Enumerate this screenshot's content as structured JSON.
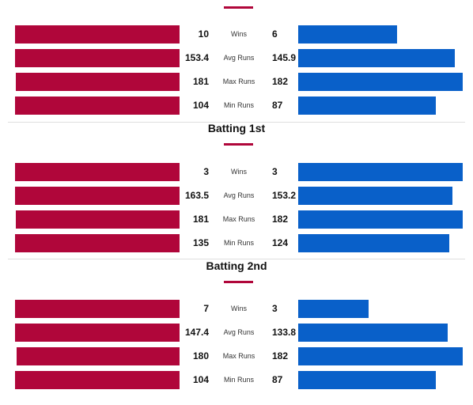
{
  "colors": {
    "team_a": "#b0063a",
    "team_b": "#0960c9",
    "accent": "#b0063a"
  },
  "chart_data": [
    {
      "type": "bar",
      "title": "",
      "orientation": "diverging-horizontal",
      "categories": [
        "Wins",
        "Avg Runs",
        "Max Runs",
        "Min Runs"
      ],
      "series": [
        {
          "values": [
            10,
            153.4,
            181,
            104
          ]
        },
        {
          "values": [
            6,
            145.9,
            182,
            87
          ]
        }
      ]
    },
    {
      "type": "bar",
      "title": "Batting 1st",
      "orientation": "diverging-horizontal",
      "categories": [
        "Wins",
        "Avg Runs",
        "Max Runs",
        "Min Runs"
      ],
      "series": [
        {
          "values": [
            3,
            163.5,
            181,
            135
          ]
        },
        {
          "values": [
            3,
            153.2,
            182,
            124
          ]
        }
      ]
    },
    {
      "type": "bar",
      "title": "Batting 2nd",
      "orientation": "diverging-horizontal",
      "categories": [
        "Wins",
        "Avg Runs",
        "Max Runs",
        "Min Runs"
      ],
      "series": [
        {
          "values": [
            7,
            147.4,
            180,
            104
          ]
        },
        {
          "values": [
            3,
            133.8,
            182,
            87
          ]
        }
      ]
    }
  ]
}
